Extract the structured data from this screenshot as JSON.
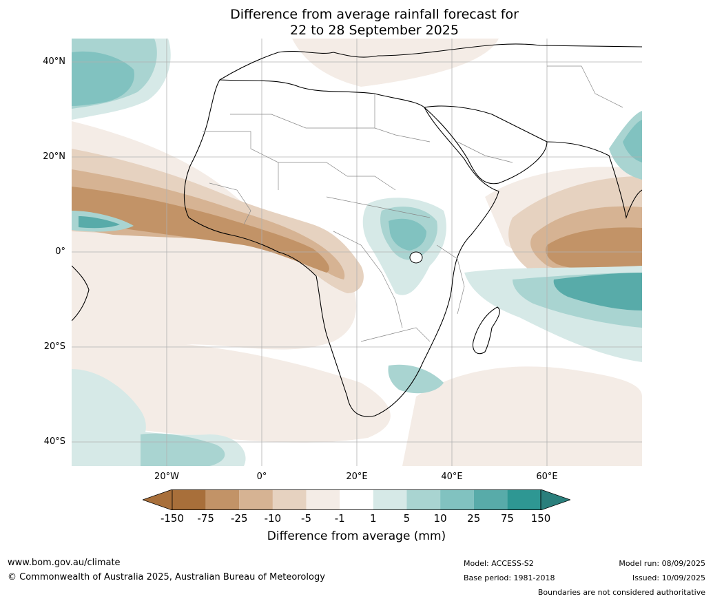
{
  "title_line1": "Difference from average rainfall forecast for",
  "title_line2": "22 to 28 September 2025",
  "lat_labels": [
    "40°N",
    "20°N",
    "0°",
    "20°S",
    "40°S"
  ],
  "lon_labels": [
    "20°W",
    "0°",
    "20°E",
    "40°E",
    "60°E"
  ],
  "colorbar": {
    "ticks": [
      "-150",
      "-75",
      "-25",
      "-10",
      "-5",
      "-1",
      "1",
      "5",
      "10",
      "25",
      "75",
      "150"
    ],
    "colors": [
      "#a86f3a",
      "#c29367",
      "#d6b393",
      "#e6d2c0",
      "#f4ece6",
      "#ffffff",
      "#d6e9e7",
      "#a9d4d1",
      "#81c2c0",
      "#58aba9",
      "#2e9793",
      "#2a7f7c"
    ],
    "label": "Difference from average (mm)"
  },
  "footer": {
    "url": "www.bom.gov.au/climate",
    "copyright": "© Commonwealth of Australia 2025, Australian Bureau of Meteorology",
    "model": "Model: ACCESS-S2",
    "base_period": "Base period: 1981-2018",
    "model_run": "Model run: 08/09/2025",
    "issued": "Issued: 10/09/2025",
    "disclaimer": "Boundaries are not considered authoritative"
  }
}
